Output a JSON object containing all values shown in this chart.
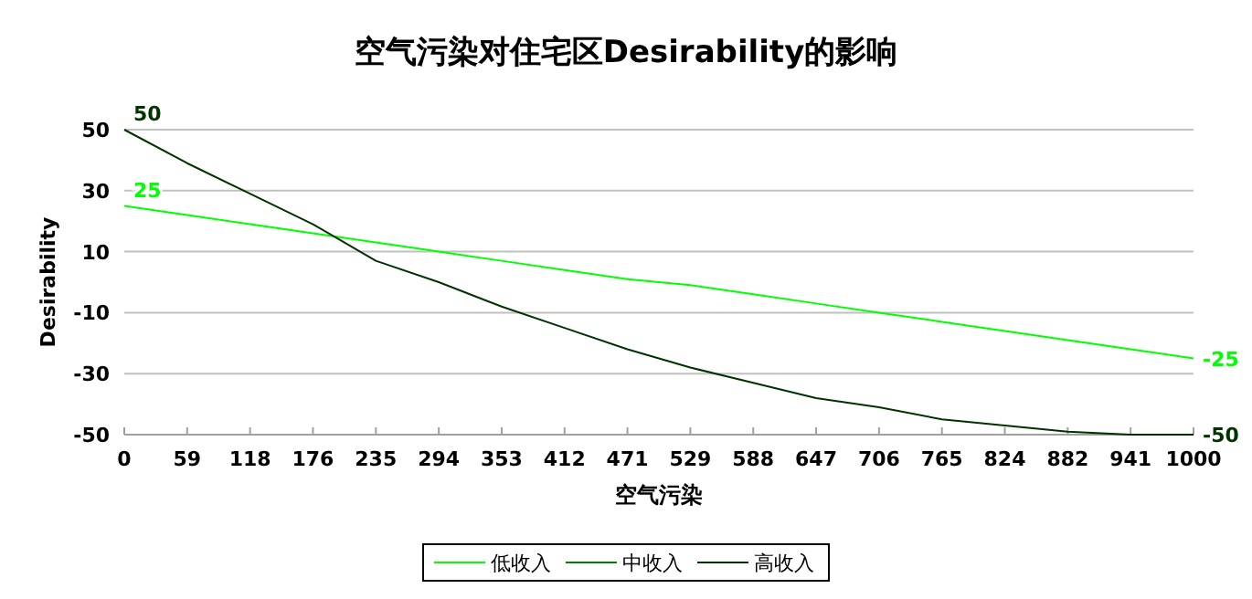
{
  "chart_data": {
    "type": "line",
    "title": "空气污染对住宅区Desirability的影响",
    "xlabel": "空气污染",
    "ylabel": "Desirability",
    "categories": [
      "0",
      "59",
      "118",
      "176",
      "235",
      "294",
      "353",
      "412",
      "471",
      "529",
      "588",
      "647",
      "706",
      "765",
      "824",
      "882",
      "941",
      "1000"
    ],
    "ylim": [
      -50,
      50
    ],
    "yticks": [
      -50,
      -30,
      -10,
      10,
      30,
      50
    ],
    "grid": "y",
    "legend": "bottom",
    "marker": "none",
    "line_style": "solid",
    "series": [
      {
        "name": "低收入",
        "color": "#00ff00",
        "values": [
          25,
          22,
          19,
          16,
          13,
          10,
          7,
          4,
          1,
          -1,
          -4,
          -7,
          -10,
          -13,
          -16,
          -19,
          -22,
          -25
        ],
        "value_labels": [
          "25",
          null,
          null,
          null,
          null,
          null,
          null,
          null,
          null,
          null,
          null,
          null,
          null,
          null,
          null,
          null,
          null,
          "-25"
        ]
      },
      {
        "name": "中收入",
        "color": "#008000",
        "values": [
          null,
          null,
          null,
          null,
          null,
          null,
          null,
          null,
          null,
          null,
          null,
          null,
          null,
          null,
          null,
          null,
          null,
          null
        ]
      },
      {
        "name": "高收入",
        "color": "#003300",
        "values": [
          50,
          39,
          29,
          19,
          7,
          0,
          -8,
          -15,
          -22,
          -28,
          -33,
          -38,
          -41,
          -45,
          -47,
          -49,
          -50,
          -50
        ],
        "value_labels": [
          "50",
          null,
          null,
          null,
          null,
          null,
          null,
          null,
          null,
          null,
          null,
          null,
          null,
          null,
          null,
          null,
          null,
          "-50"
        ]
      }
    ]
  }
}
